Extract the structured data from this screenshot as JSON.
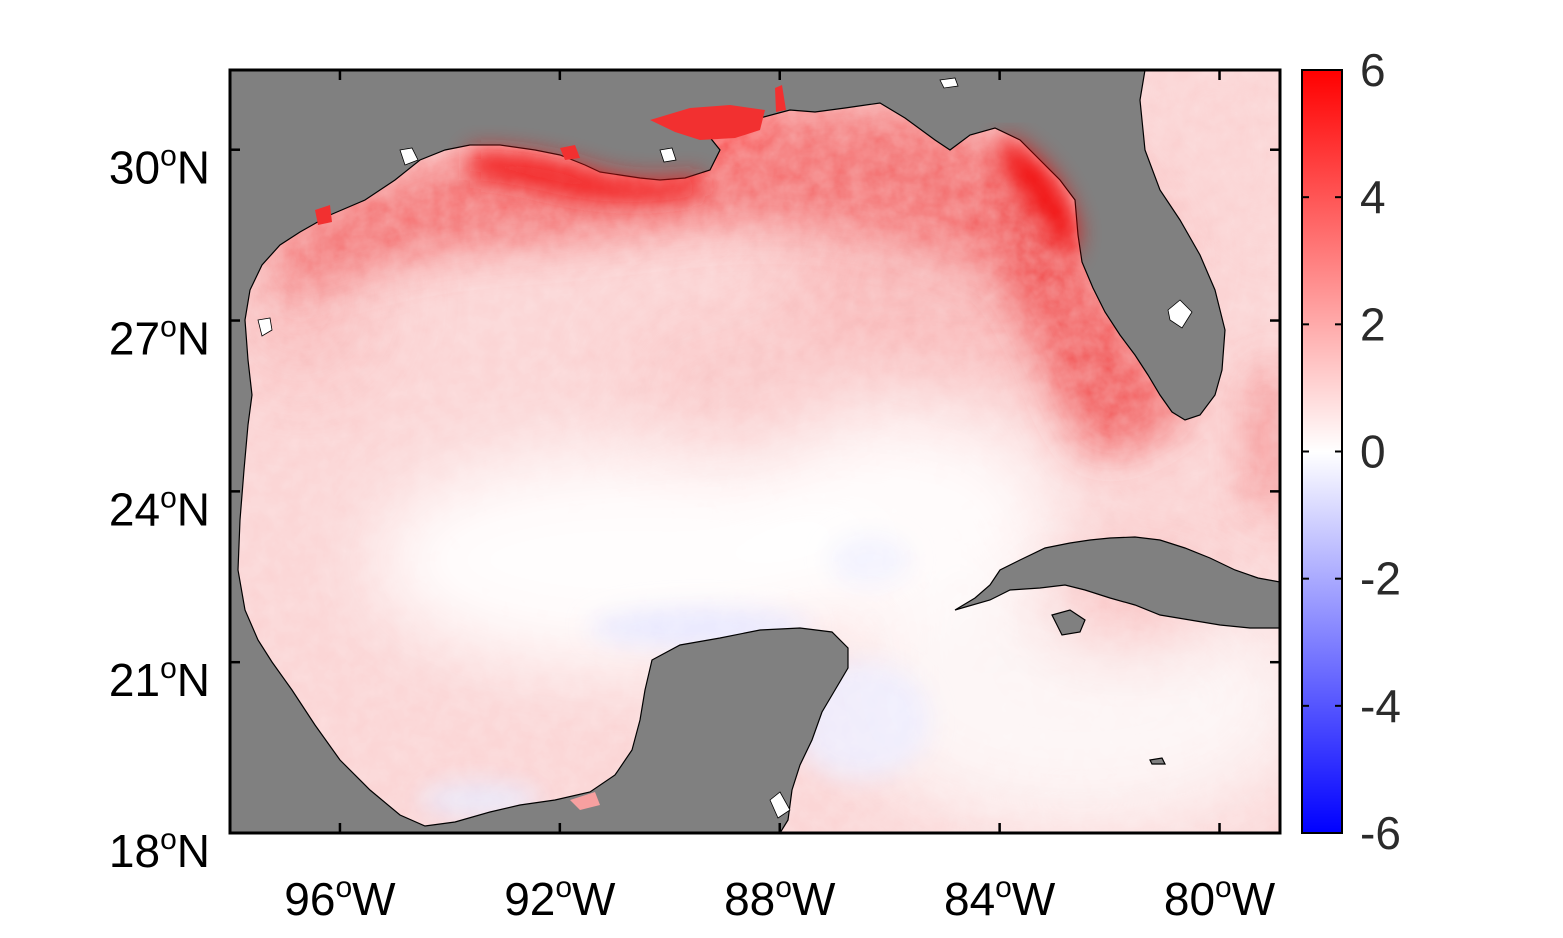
{
  "map": {
    "land_color": "#808080",
    "coast_color": "#000000",
    "colormap": {
      "low": "#0000ff",
      "mid": "#ffffff",
      "high": "#ff0000"
    },
    "lon_range": [
      -98,
      -78.9
    ],
    "lat_range": [
      18,
      31.4
    ],
    "lat_ticks": [
      {
        "deg": "30",
        "sup": "o",
        "hem": "N",
        "value": 30
      },
      {
        "deg": "27",
        "sup": "o",
        "hem": "N",
        "value": 27
      },
      {
        "deg": "24",
        "sup": "o",
        "hem": "N",
        "value": 24
      },
      {
        "deg": "21",
        "sup": "o",
        "hem": "N",
        "value": 21
      },
      {
        "deg": "18",
        "sup": "o",
        "hem": "N",
        "value": 18
      }
    ],
    "lon_ticks": [
      {
        "deg": "96",
        "sup": "o",
        "hem": "W",
        "value": -96
      },
      {
        "deg": "92",
        "sup": "o",
        "hem": "W",
        "value": -92
      },
      {
        "deg": "88",
        "sup": "o",
        "hem": "W",
        "value": -88
      },
      {
        "deg": "84",
        "sup": "o",
        "hem": "W",
        "value": -84
      },
      {
        "deg": "80",
        "sup": "o",
        "hem": "W",
        "value": -80
      }
    ]
  },
  "colorbar": {
    "min": -6,
    "max": 6,
    "labels": [
      "6",
      "4",
      "2",
      "0",
      "-2",
      "-4",
      "-6"
    ],
    "values": [
      6,
      4,
      2,
      0,
      -2,
      -4,
      -6
    ]
  }
}
